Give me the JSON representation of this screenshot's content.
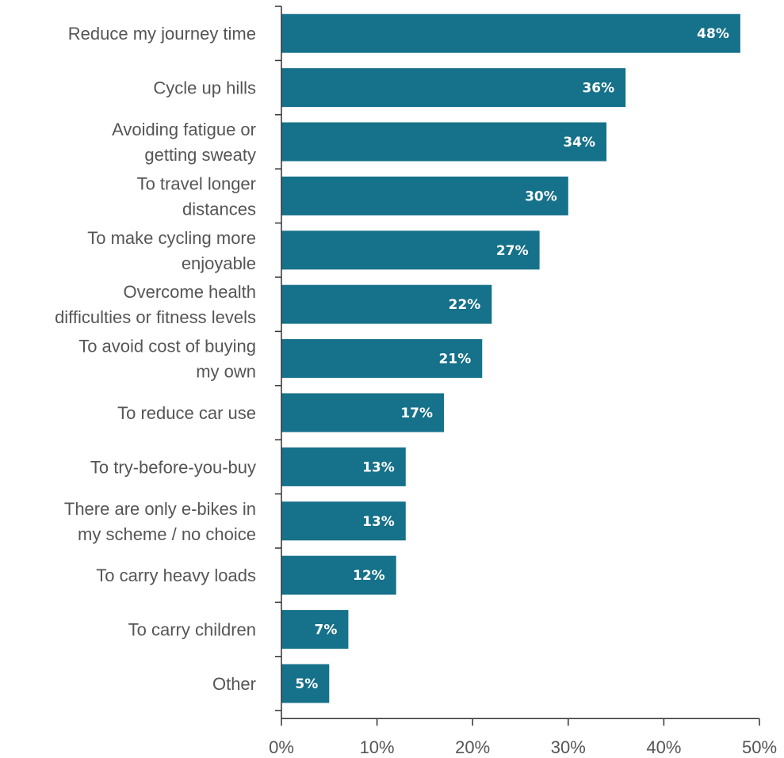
{
  "chart_data": {
    "type": "bar",
    "orientation": "horizontal",
    "categories": [
      [
        "Reduce my journey time"
      ],
      [
        "Cycle up hills"
      ],
      [
        "Avoiding fatigue or",
        "getting sweaty"
      ],
      [
        "To travel longer",
        "distances"
      ],
      [
        "To make cycling more",
        "enjoyable"
      ],
      [
        "Overcome health",
        "difficulties or fitness levels"
      ],
      [
        "To avoid cost of buying",
        "my own"
      ],
      [
        "To reduce car use"
      ],
      [
        "To try-before-you-buy"
      ],
      [
        "There are only e-bikes in",
        "my scheme / no choice"
      ],
      [
        "To carry heavy loads"
      ],
      [
        "To carry children"
      ],
      [
        "Other"
      ]
    ],
    "values": [
      48,
      36,
      34,
      30,
      27,
      22,
      21,
      17,
      13,
      13,
      12,
      7,
      5
    ],
    "value_labels": [
      "48%",
      "36%",
      "34%",
      "30%",
      "27%",
      "22%",
      "21%",
      "17%",
      "13%",
      "13%",
      "12%",
      "7%",
      "5%"
    ],
    "xlim": [
      0,
      50
    ],
    "xticks": [
      0,
      10,
      20,
      30,
      40,
      50
    ],
    "xtick_labels": [
      "0%",
      "10%",
      "20%",
      "30%",
      "40%",
      "50%"
    ],
    "bar_color": "#16718a",
    "value_label_color": "#ffffff",
    "grid": false,
    "title": "",
    "xlabel": "",
    "ylabel": ""
  }
}
